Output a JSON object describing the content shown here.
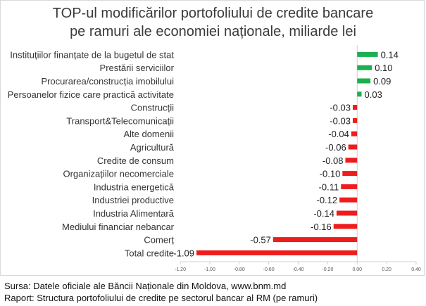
{
  "chart_data": {
    "type": "bar",
    "orientation": "horizontal",
    "title": "TOP-ul modificărilor portofoliului de credite bancare pe ramuri ale economiei naționale, miliarde lei",
    "title_lines": [
      "TOP-ul modificărilor portofoliului de credite bancare",
      "pe ramuri ale economiei naționale, miliarde lei"
    ],
    "categories": [
      "Instituțiilor finanțate de la bugetul de stat",
      "Prestării serviciilor",
      "Procurarea/construcția imobilului",
      "Persoanelor fizice care practică activitate",
      "Construcții",
      "Transport&Telecomunicații",
      "Alte domenii",
      "Agricultură",
      "Credite de consum",
      "Organizațiilor necomerciale",
      "Industria energetică",
      "Industriei productive",
      "Industria Alimentară",
      "Mediului financiar nebancar",
      "Comerț",
      "Total credite"
    ],
    "values": [
      0.14,
      0.1,
      0.09,
      0.03,
      -0.03,
      -0.03,
      -0.04,
      -0.06,
      -0.08,
      -0.1,
      -0.11,
      -0.12,
      -0.14,
      -0.16,
      -0.57,
      -1.09
    ],
    "value_labels": [
      "0.14",
      "0.10",
      "0.09",
      "0.03",
      "-0.03",
      "-0.03",
      "-0.04",
      "-0.06",
      "-0.08",
      "-0.10",
      "-0.11",
      "-0.12",
      "-0.14",
      "-0.16",
      "-0.57",
      "-1.09"
    ],
    "xlim": [
      -1.2,
      0.4
    ],
    "xticks": [
      -1.2,
      -1.0,
      -0.8,
      -0.6,
      -0.4,
      -0.2,
      0.0,
      0.2,
      0.4
    ],
    "xtick_labels": [
      "-1.20",
      "-1.00",
      "-0.80",
      "-0.60",
      "-0.40",
      "-0.20",
      "0.00",
      "0.20",
      "0.40"
    ],
    "colors": {
      "positive": "#1aaf4f",
      "negative": "#ee1c1c",
      "axis": "#d0d0d0",
      "tick_text": "#595959"
    },
    "grid": false,
    "xlabel": "",
    "ylabel": ""
  },
  "footer": {
    "source": "Sursa: Datele oficiale ale Băncii Naționale din Moldova, www.bnm.md",
    "report": "Raport: Structura portofoliului de credite pe sectorul bancar al RM (pe ramuri)"
  }
}
